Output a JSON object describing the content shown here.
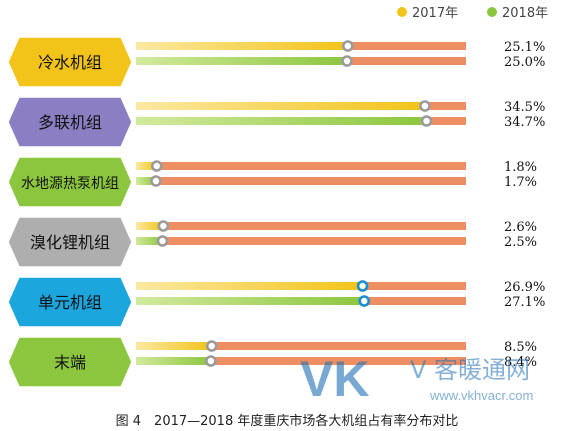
{
  "chart_data": {
    "type": "bar",
    "title": "",
    "xlabel": "",
    "ylabel": "",
    "xlim": [
      0,
      40
    ],
    "grid": false,
    "legend_position": "top-right",
    "categories": [
      "冷水机组",
      "多联机组",
      "水地源热泵机组",
      "溴化锂机组",
      "单元机组",
      "末端"
    ],
    "series": [
      {
        "name": "2017年",
        "values": [
          25.1,
          34.5,
          1.8,
          2.6,
          26.9,
          8.5
        ],
        "labels": [
          "25.1%",
          "34.5%",
          "1.8%",
          "2.6%",
          "26.9%",
          "8.5%"
        ]
      },
      {
        "name": "2018年",
        "values": [
          25.0,
          34.7,
          1.7,
          2.5,
          27.1,
          8.4
        ],
        "labels": [
          "25.0%",
          "34.7%",
          "1.7%",
          "2.5%",
          "27.1%",
          "8.4%"
        ]
      }
    ],
    "colors": {
      "series_2017": "#f2c318",
      "series_2018": "#8cc63e",
      "track": "#ee8f63",
      "badges": [
        "#f2c318",
        "#8b7ec2",
        "#8cc63e",
        "#aeaeae",
        "#1ba6de",
        "#8cc63e"
      ]
    }
  },
  "caption": "图 4　2017—2018 年度重庆市场各大机组占有率分布对比",
  "watermark": {
    "logo": "VK",
    "text": "V 客暖通网",
    "url": "www.vkhvacr.com"
  }
}
